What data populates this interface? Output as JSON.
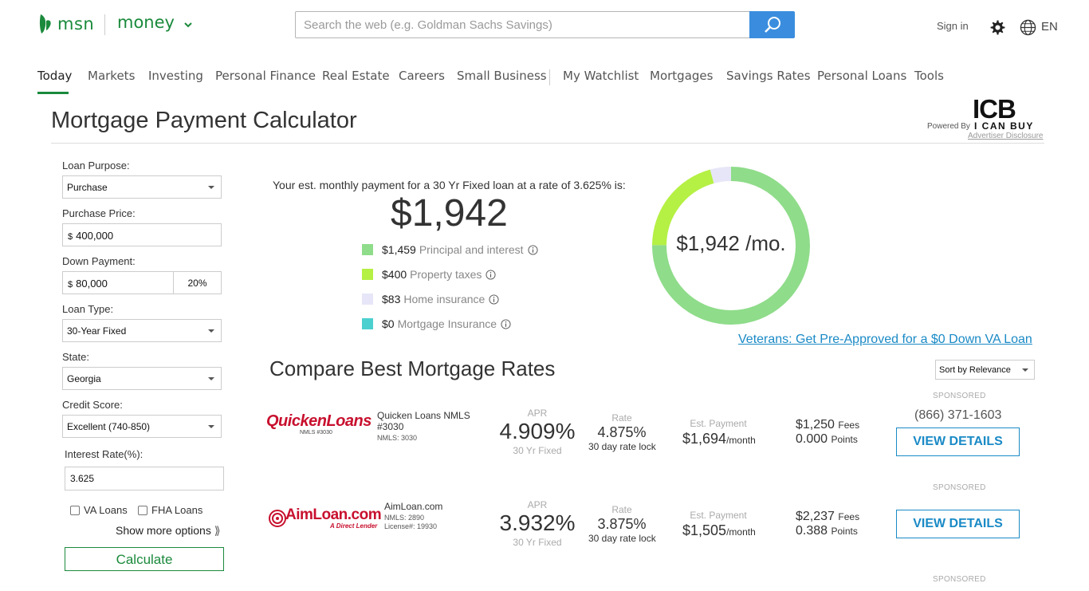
{
  "header": {
    "brand": "msn",
    "section": "money",
    "search_placeholder": "Search the web (e.g. Goldman Sachs Savings)",
    "signin": "Sign in",
    "language": "EN"
  },
  "nav": {
    "items": [
      "Today",
      "Markets",
      "Investing",
      "Personal Finance",
      "Real Estate",
      "Careers",
      "Small Business",
      "My Watchlist",
      "Mortgages",
      "Savings Rates",
      "Personal Loans",
      "Tools"
    ],
    "active": "Today"
  },
  "page": {
    "title": "Mortgage Payment Calculator",
    "powered_by": "Powered By",
    "icb_big": "ICB",
    "icb_small": "I CAN BUY",
    "advertiser_disclosure": "Advertiser Disclosure"
  },
  "form": {
    "loan_purpose_label": "Loan Purpose:",
    "loan_purpose_value": "Purchase",
    "purchase_price_label": "Purchase Price:",
    "purchase_price_currency": "$",
    "purchase_price_value": "400,000",
    "down_payment_label": "Down Payment:",
    "down_payment_currency": "$",
    "down_payment_value": "80,000",
    "down_payment_pct": "20%",
    "loan_type_label": "Loan Type:",
    "loan_type_value": "30-Year Fixed",
    "state_label": "State:",
    "state_value": "Georgia",
    "credit_score_label": "Credit Score:",
    "credit_score_value": "Excellent (740-850)",
    "interest_rate_label": "Interest Rate(%):",
    "interest_rate_value": "3.625",
    "va_loans_label": "VA Loans",
    "fha_loans_label": "FHA Loans",
    "show_more": "Show more options",
    "show_more_glyph": "⟫",
    "calculate": "Calculate"
  },
  "summary": {
    "est_text": "Your est. monthly payment for a 30 Yr Fixed loan at a rate of 3.625% is:",
    "payment": "$1,942",
    "donut_label": "$1,942 /mo.",
    "breakdown": [
      {
        "amount": "$1,459",
        "label": "Principal and interest",
        "value": 1459,
        "color": "#8fdc8a"
      },
      {
        "amount": "$400",
        "label": "Property taxes",
        "value": 400,
        "color": "#b5f044"
      },
      {
        "amount": "$83",
        "label": "Home insurance",
        "value": 83,
        "color": "#e6e6f8"
      },
      {
        "amount": "$0",
        "label": "Mortgage Insurance",
        "value": 0,
        "color": "#4ccfcf"
      }
    ]
  },
  "va_link": "Veterans: Get Pre-Approved for a $0 Down VA Loan",
  "compare": {
    "title": "Compare Best Mortgage Rates",
    "sort_value": "Sort by Relevance"
  },
  "lenders": [
    {
      "sponsored": "SPONSORED",
      "logo_main": "QuickenLoans",
      "logo_sub": "NMLS #3030",
      "name": "Quicken Loans NMLS #3030",
      "sub1": "NMLS: 3030",
      "sub2": "",
      "apr_cap": "APR",
      "apr": "4.909%",
      "apr_sub": "30 Yr Fixed",
      "rate_cap": "Rate",
      "rate": "4.875%",
      "rate_sub": "30 day rate lock",
      "pay_cap": "Est. Payment",
      "payment": "$1,694",
      "payment_unit": "/month",
      "fees": "$1,250",
      "fees_label": "Fees",
      "points": "0.000",
      "points_label": "Points",
      "phone": "(866) 371-1603",
      "button": "VIEW DETAILS"
    },
    {
      "sponsored": "SPONSORED",
      "logo_main": "AimLoan.com",
      "logo_sub": "A Direct Lender",
      "name": "AimLoan.com",
      "sub1": "NMLS: 2890",
      "sub2": "License#: 19930",
      "apr_cap": "APR",
      "apr": "3.932%",
      "apr_sub": "30 Yr Fixed",
      "rate_cap": "Rate",
      "rate": "3.875%",
      "rate_sub": "30 day rate lock",
      "pay_cap": "Est. Payment",
      "payment": "$1,505",
      "payment_unit": "/month",
      "fees": "$2,237",
      "fees_label": "Fees",
      "points": "0.388",
      "points_label": "Points",
      "phone": "",
      "button": "VIEW DETAILS"
    },
    {
      "sponsored": "SPONSORED"
    }
  ]
}
